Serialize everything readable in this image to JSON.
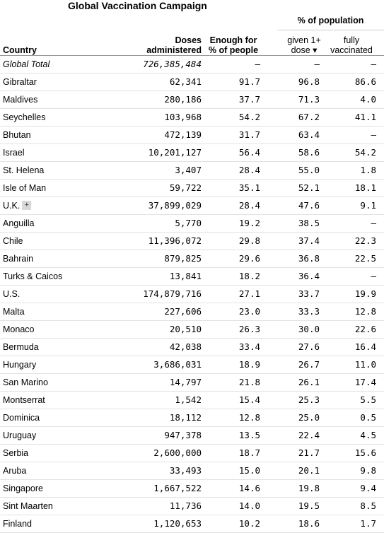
{
  "chart_data": {
    "type": "table",
    "title": "Global Vaccination Campaign",
    "group_header": "% of population",
    "columns": {
      "country": "Country",
      "doses": "Doses administered",
      "enough": "Enough for % of people",
      "given": "given 1+ dose ▾",
      "fully": "fully vaccinated"
    },
    "expand_symbol": "+",
    "rows": [
      {
        "country": "Global Total",
        "doses": "726,385,484",
        "enough": "–",
        "given": "–",
        "fully": "–",
        "total": true
      },
      {
        "country": "Gibraltar",
        "doses": "62,341",
        "enough": "91.7",
        "given": "96.8",
        "fully": "86.6"
      },
      {
        "country": "Maldives",
        "doses": "280,186",
        "enough": "37.7",
        "given": "71.3",
        "fully": "4.0"
      },
      {
        "country": "Seychelles",
        "doses": "103,968",
        "enough": "54.2",
        "given": "67.2",
        "fully": "41.1"
      },
      {
        "country": "Bhutan",
        "doses": "472,139",
        "enough": "31.7",
        "given": "63.4",
        "fully": "–"
      },
      {
        "country": "Israel",
        "doses": "10,201,127",
        "enough": "56.4",
        "given": "58.6",
        "fully": "54.2"
      },
      {
        "country": "St. Helena",
        "doses": "3,407",
        "enough": "28.4",
        "given": "55.0",
        "fully": "1.8"
      },
      {
        "country": "Isle of Man",
        "doses": "59,722",
        "enough": "35.1",
        "given": "52.1",
        "fully": "18.1"
      },
      {
        "country": "U.K.",
        "doses": "37,899,029",
        "enough": "28.4",
        "given": "47.6",
        "fully": "9.1",
        "expandable": true
      },
      {
        "country": "Anguilla",
        "doses": "5,770",
        "enough": "19.2",
        "given": "38.5",
        "fully": "–"
      },
      {
        "country": "Chile",
        "doses": "11,396,072",
        "enough": "29.8",
        "given": "37.4",
        "fully": "22.3"
      },
      {
        "country": "Bahrain",
        "doses": "879,825",
        "enough": "29.6",
        "given": "36.8",
        "fully": "22.5"
      },
      {
        "country": "Turks & Caicos",
        "doses": "13,841",
        "enough": "18.2",
        "given": "36.4",
        "fully": "–"
      },
      {
        "country": "U.S.",
        "doses": "174,879,716",
        "enough": "27.1",
        "given": "33.7",
        "fully": "19.9"
      },
      {
        "country": "Malta",
        "doses": "227,606",
        "enough": "23.0",
        "given": "33.3",
        "fully": "12.8"
      },
      {
        "country": "Monaco",
        "doses": "20,510",
        "enough": "26.3",
        "given": "30.0",
        "fully": "22.6"
      },
      {
        "country": "Bermuda",
        "doses": "42,038",
        "enough": "33.4",
        "given": "27.6",
        "fully": "16.4"
      },
      {
        "country": "Hungary",
        "doses": "3,686,031",
        "enough": "18.9",
        "given": "26.7",
        "fully": "11.0"
      },
      {
        "country": "San Marino",
        "doses": "14,797",
        "enough": "21.8",
        "given": "26.1",
        "fully": "17.4"
      },
      {
        "country": "Montserrat",
        "doses": "1,542",
        "enough": "15.4",
        "given": "25.3",
        "fully": "5.5"
      },
      {
        "country": "Dominica",
        "doses": "18,112",
        "enough": "12.8",
        "given": "25.0",
        "fully": "0.5"
      },
      {
        "country": "Uruguay",
        "doses": "947,378",
        "enough": "13.5",
        "given": "22.4",
        "fully": "4.5"
      },
      {
        "country": "Serbia",
        "doses": "2,600,000",
        "enough": "18.7",
        "given": "21.7",
        "fully": "15.6"
      },
      {
        "country": "Aruba",
        "doses": "33,493",
        "enough": "15.0",
        "given": "20.1",
        "fully": "9.8"
      },
      {
        "country": "Singapore",
        "doses": "1,667,522",
        "enough": "14.6",
        "given": "19.8",
        "fully": "9.4"
      },
      {
        "country": "Sint Maarten",
        "doses": "11,736",
        "enough": "14.0",
        "given": "19.5",
        "fully": "8.5"
      },
      {
        "country": "Finland",
        "doses": "1,120,653",
        "enough": "10.2",
        "given": "18.6",
        "fully": "1.7"
      }
    ]
  }
}
